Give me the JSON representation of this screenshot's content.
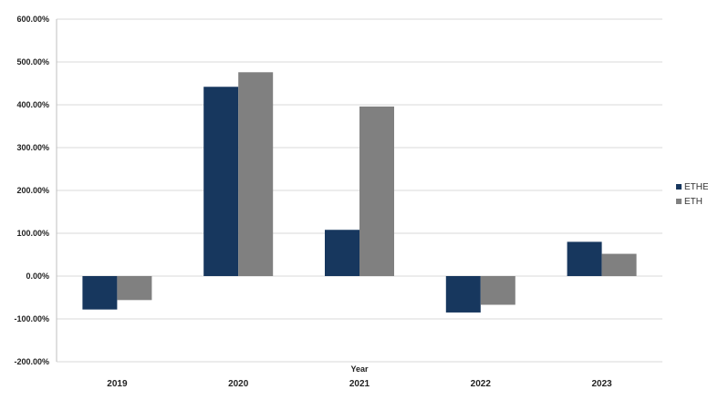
{
  "chart_data": {
    "type": "bar",
    "categories": [
      "2019",
      "2020",
      "2021",
      "2022",
      "2023"
    ],
    "series": [
      {
        "name": "ETHE",
        "values": [
          -78,
          442,
          108,
          -85,
          80
        ],
        "color": "#17375e"
      },
      {
        "name": "ETH",
        "values": [
          -56,
          476,
          396,
          -67,
          52
        ],
        "color": "#808080"
      }
    ],
    "xlabel": "Year",
    "ylabel": "",
    "ylim": [
      -200,
      600
    ],
    "yticks": [
      -200,
      -100,
      0,
      100,
      200,
      300,
      400,
      500,
      600
    ],
    "ytick_labels": [
      "-200.00%",
      "-100.00%",
      "0.00%",
      "100.00%",
      "200.00%",
      "300.00%",
      "400.00%",
      "500.00%",
      "600.00%"
    ],
    "grid": true,
    "legend_position": "right"
  }
}
